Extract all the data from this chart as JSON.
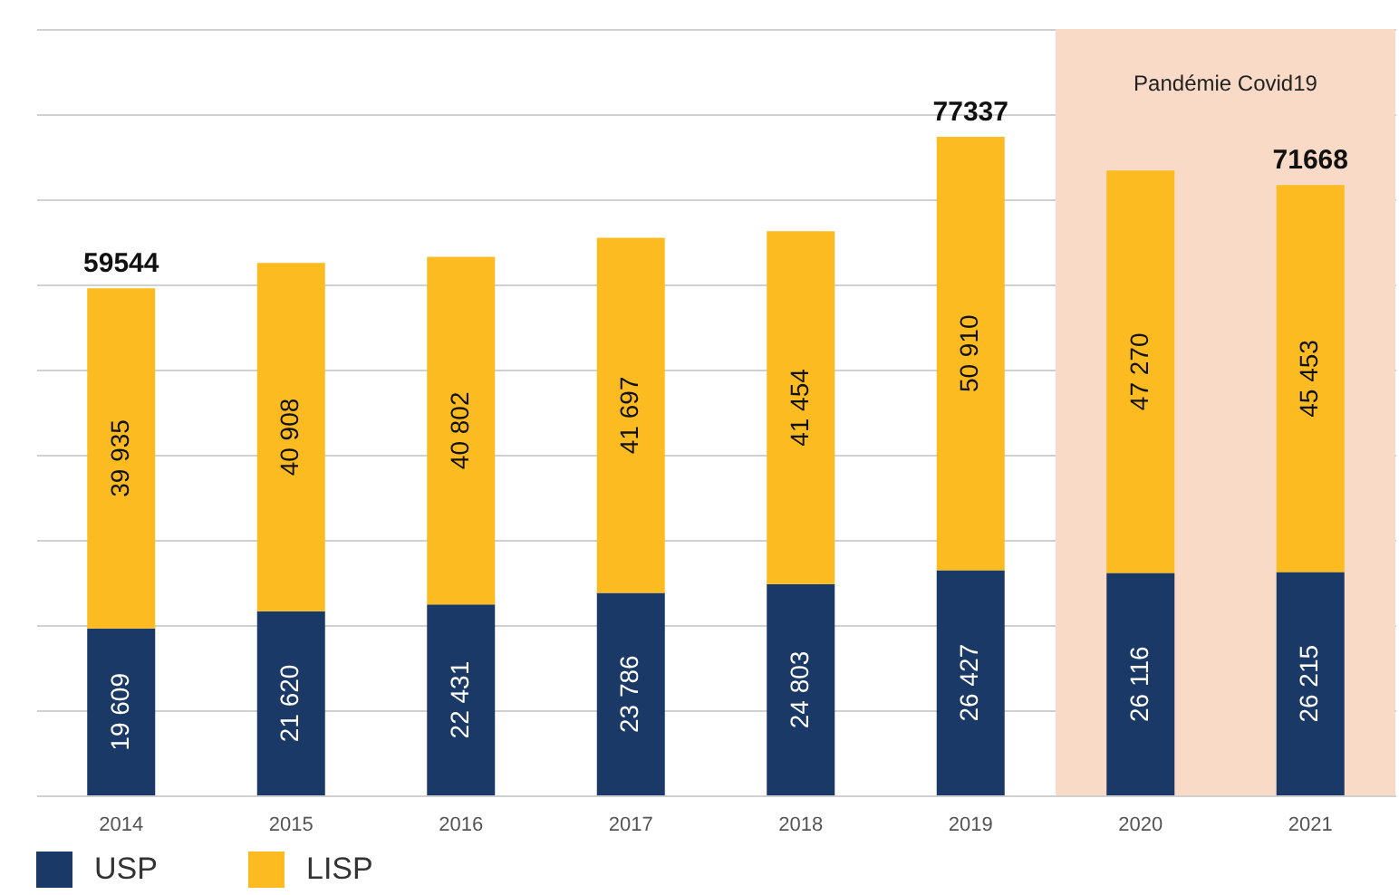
{
  "chart_data": {
    "type": "bar",
    "stacked": true,
    "categories": [
      "2014",
      "2015",
      "2016",
      "2017",
      "2018",
      "2019",
      "2020",
      "2021"
    ],
    "series": [
      {
        "name": "USP",
        "color": "#1b3966",
        "values": [
          19609,
          21620,
          22431,
          23786,
          24803,
          26427,
          26116,
          26215
        ],
        "value_labels": [
          "19 609",
          "21 620",
          "22 431",
          "23 786",
          "24 803",
          "26 427",
          "26 116",
          "26 215"
        ]
      },
      {
        "name": "LISP",
        "color": "#fbbb21",
        "values": [
          39935,
          40908,
          40802,
          41697,
          41454,
          50910,
          47270,
          45453
        ],
        "value_labels": [
          "39 935",
          "40 908",
          "40 802",
          "41 697",
          "41 454",
          "50 910",
          "47 270",
          "45 453"
        ]
      }
    ],
    "totals": [
      "59544",
      null,
      null,
      null,
      null,
      "77337",
      null,
      "71668"
    ],
    "ylim": [
      0,
      90000
    ],
    "yticks": [
      {
        "value": 0,
        "label": null
      },
      {
        "value": 10000,
        "label": null
      },
      {
        "value": 20000,
        "label": null
      },
      {
        "value": 30000,
        "label": null
      },
      {
        "value": 40000,
        "label": null
      },
      {
        "value": 50000,
        "label": null
      },
      {
        "value": 60000,
        "label": null
      },
      {
        "value": 70000,
        "label": null
      },
      {
        "value": 80000,
        "label": null
      },
      {
        "value": 90000,
        "label": null
      }
    ],
    "tick_labels": "x",
    "grid": "y",
    "legend": "bottom",
    "bands": [
      {
        "axis": "x",
        "from": "2020",
        "to": "2021",
        "label": "Pandémie Covid19",
        "color": "#f9dac6"
      }
    ]
  }
}
